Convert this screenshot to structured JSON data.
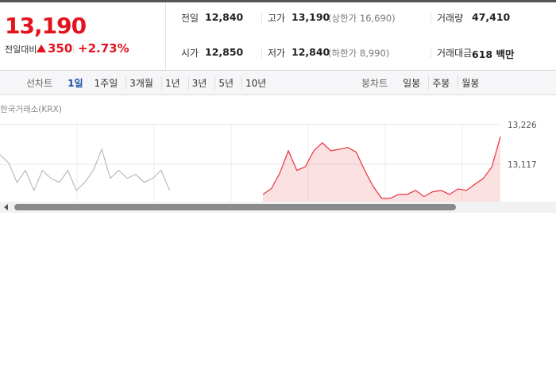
{
  "price": {
    "current": "13,190",
    "change_label": "전일대비",
    "change": "350",
    "change_rate": "+2.73%"
  },
  "stats": [
    {
      "label": "전일",
      "value": "12,840"
    },
    {
      "label": "고가",
      "value": "13,190",
      "note": "(상한가 16,690)"
    },
    {
      "label": "거래량",
      "value": "47,410"
    },
    {
      "label": "시가",
      "value": "12,850"
    },
    {
      "label": "저가",
      "value": "12,840",
      "note": "(하한가 8,990)"
    },
    {
      "label": "거래대금",
      "value": "618 백만"
    }
  ],
  "periods": {
    "label": "선차트",
    "items": [
      "1일",
      "1주일",
      "3개월",
      "1년",
      "3년",
      "5년",
      "10년"
    ]
  },
  "candles": {
    "label": "봉차트",
    "items": [
      "일봉",
      "주봉",
      "월봉"
    ]
  },
  "chart_data": {
    "type": "line",
    "source": "한국거래소(KRX)",
    "ylim": [
      12990,
      13241
    ],
    "yticks": [
      {
        "value": 13226,
        "label": "13,226"
      },
      {
        "value": 13117,
        "label": "13,117"
      }
    ],
    "grid": true,
    "series": [
      {
        "color": "#bbbbbb",
        "fill": false,
        "values": [
          13143,
          13121,
          13067,
          13100,
          13045,
          13100,
          13078,
          13067,
          13100,
          13045,
          13067,
          13100,
          13158,
          13078,
          13100,
          13078,
          13089,
          13067,
          13078,
          13100,
          13045,
          null,
          null,
          null,
          null,
          null,
          null,
          null,
          null,
          null,
          null,
          null,
          null,
          null,
          null,
          null,
          null,
          null,
          null,
          null,
          null,
          null,
          null,
          null,
          null,
          null,
          null,
          null,
          null,
          null,
          null,
          null,
          null,
          null,
          null,
          null,
          null,
          null,
          null,
          null
        ]
      },
      {
        "color": "#e8333a",
        "fill": true,
        "values": [
          null,
          null,
          null,
          null,
          null,
          null,
          null,
          null,
          null,
          null,
          null,
          null,
          null,
          null,
          null,
          null,
          null,
          null,
          null,
          null,
          null,
          null,
          null,
          null,
          null,
          null,
          null,
          null,
          null,
          null,
          null,
          13034,
          13050,
          13093,
          13154,
          13100,
          13110,
          13154,
          13176,
          13154,
          13158,
          13163,
          13150,
          13100,
          13056,
          13023,
          13023,
          13034,
          13034,
          13045,
          13028,
          13041,
          13045,
          13034,
          13049,
          13045,
          13062,
          13078,
          13110,
          13193
        ]
      }
    ]
  }
}
